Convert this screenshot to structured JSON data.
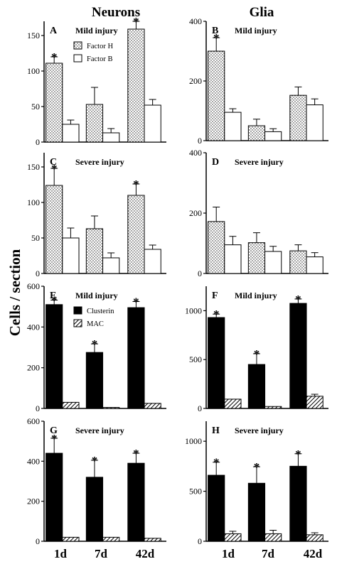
{
  "figure": {
    "col_titles": [
      "Neurons",
      "Glia"
    ],
    "ylabel": "Cells / section",
    "categories": [
      "1d",
      "7d",
      "42d"
    ]
  },
  "chart_data": [
    {
      "type": "bar",
      "letter": "A",
      "subtitle": "Mild injury",
      "ylim": [
        0,
        170
      ],
      "yticks": [
        0,
        50,
        100,
        150
      ],
      "legend": "top-right",
      "categories": [
        "1d",
        "7d",
        "42d"
      ],
      "series": [
        {
          "name": "Factor H",
          "pattern": "dots",
          "values": [
            111,
            53,
            159
          ],
          "errors": [
            9,
            24,
            11
          ],
          "significant": [
            true,
            false,
            true
          ]
        },
        {
          "name": "Factor B",
          "pattern": "white",
          "values": [
            25,
            13,
            52
          ],
          "errors": [
            6,
            6,
            8
          ],
          "significant": [
            false,
            false,
            false
          ]
        }
      ]
    },
    {
      "type": "bar",
      "letter": "B",
      "subtitle": "Mild injury",
      "ylim": [
        0,
        400
      ],
      "yticks": [
        0,
        200,
        400
      ],
      "categories": [
        "1d",
        "7d",
        "42d"
      ],
      "series": [
        {
          "name": "Factor H",
          "pattern": "dots",
          "values": [
            300,
            50,
            152
          ],
          "errors": [
            45,
            22,
            28
          ],
          "significant": [
            true,
            false,
            false
          ]
        },
        {
          "name": "Factor B",
          "pattern": "white",
          "values": [
            95,
            30,
            120
          ],
          "errors": [
            12,
            10,
            20
          ],
          "significant": [
            false,
            false,
            false
          ]
        }
      ]
    },
    {
      "type": "bar",
      "letter": "C",
      "subtitle": "Severe injury",
      "ylim": [
        0,
        170
      ],
      "yticks": [
        0,
        50,
        100,
        150
      ],
      "categories": [
        "1d",
        "7d",
        "42d"
      ],
      "series": [
        {
          "name": "Factor H",
          "pattern": "dots",
          "values": [
            124,
            63,
            110
          ],
          "errors": [
            24,
            18,
            16
          ],
          "significant": [
            true,
            false,
            true
          ]
        },
        {
          "name": "Factor B",
          "pattern": "white",
          "values": [
            50,
            22,
            34
          ],
          "errors": [
            14,
            7,
            6
          ],
          "significant": [
            false,
            false,
            false
          ]
        }
      ]
    },
    {
      "type": "bar",
      "letter": "D",
      "subtitle": "Severe injury",
      "ylim": [
        0,
        400
      ],
      "yticks": [
        0,
        200,
        400
      ],
      "categories": [
        "1d",
        "7d",
        "42d"
      ],
      "series": [
        {
          "name": "Factor H",
          "pattern": "dots",
          "values": [
            172,
            102,
            75
          ],
          "errors": [
            48,
            33,
            20
          ],
          "significant": [
            false,
            false,
            false
          ]
        },
        {
          "name": "Factor B",
          "pattern": "white",
          "values": [
            95,
            73,
            55
          ],
          "errors": [
            28,
            17,
            14
          ],
          "significant": [
            false,
            false,
            false
          ]
        }
      ]
    },
    {
      "type": "bar",
      "letter": "E",
      "subtitle": "Mild injury",
      "ylim": [
        0,
        600
      ],
      "yticks": [
        0,
        200,
        400,
        600
      ],
      "legend": "top-right",
      "categories": [
        "1d",
        "7d",
        "42d"
      ],
      "series": [
        {
          "name": "Clusterin",
          "pattern": "black",
          "values": [
            510,
            275,
            495
          ],
          "errors": [
            22,
            42,
            30
          ],
          "significant": [
            true,
            true,
            true
          ]
        },
        {
          "name": "MAC",
          "pattern": "hatch",
          "values": [
            30,
            5,
            25
          ],
          "errors": [
            0,
            0,
            0
          ],
          "significant": [
            false,
            false,
            false
          ]
        }
      ]
    },
    {
      "type": "bar",
      "letter": "F",
      "subtitle": "Mild injury",
      "ylim": [
        0,
        1250
      ],
      "yticks": [
        0,
        500,
        1000
      ],
      "categories": [
        "1d",
        "7d",
        "42d"
      ],
      "series": [
        {
          "name": "Clusterin",
          "pattern": "black",
          "values": [
            930,
            450,
            1075
          ],
          "errors": [
            35,
            110,
            45
          ],
          "significant": [
            true,
            true,
            true
          ]
        },
        {
          "name": "MAC",
          "pattern": "hatch",
          "values": [
            95,
            20,
            125
          ],
          "errors": [
            0,
            0,
            20
          ],
          "significant": [
            false,
            false,
            false
          ]
        }
      ]
    },
    {
      "type": "bar",
      "letter": "G",
      "subtitle": "Severe injury",
      "ylim": [
        0,
        600
      ],
      "yticks": [
        0,
        200,
        400,
        600
      ],
      "categories": [
        "1d",
        "7d",
        "42d"
      ],
      "series": [
        {
          "name": "Clusterin",
          "pattern": "black",
          "values": [
            440,
            320,
            390
          ],
          "errors": [
            75,
            85,
            50
          ],
          "significant": [
            true,
            true,
            true
          ]
        },
        {
          "name": "MAC",
          "pattern": "hatch",
          "values": [
            20,
            20,
            15
          ],
          "errors": [
            0,
            0,
            0
          ],
          "significant": [
            false,
            false,
            false
          ]
        }
      ]
    },
    {
      "type": "bar",
      "letter": "H",
      "subtitle": "Severe injury",
      "ylim": [
        0,
        1200
      ],
      "yticks": [
        0,
        500,
        1000
      ],
      "categories": [
        "1d",
        "7d",
        "42d"
      ],
      "series": [
        {
          "name": "Clusterin",
          "pattern": "black",
          "values": [
            660,
            580,
            750
          ],
          "errors": [
            130,
            165,
            125
          ],
          "significant": [
            true,
            true,
            true
          ]
        },
        {
          "name": "MAC",
          "pattern": "hatch",
          "values": [
            75,
            75,
            65
          ],
          "errors": [
            25,
            35,
            20
          ],
          "significant": [
            false,
            false,
            false
          ]
        }
      ]
    }
  ]
}
